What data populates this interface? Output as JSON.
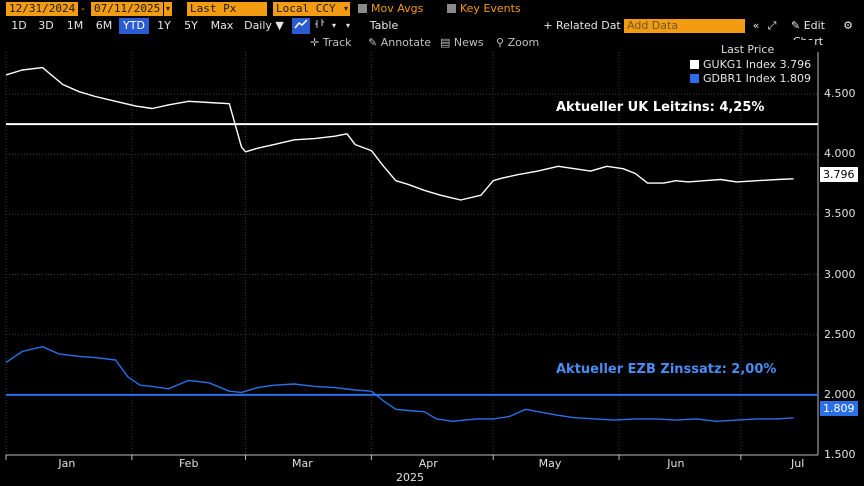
{
  "toolbar": {
    "start_date": "12/31/2024",
    "end_date": "07/11/2025",
    "last_px": "Last Px",
    "currency": "Local CCY",
    "mov_avgs": "Mov Avgs",
    "key_events": "Key Events",
    "accent": "#f39c12"
  },
  "periods": [
    {
      "label": "1D",
      "active": false
    },
    {
      "label": "3D",
      "active": false
    },
    {
      "label": "1M",
      "active": false
    },
    {
      "label": "6M",
      "active": false
    },
    {
      "label": "YTD",
      "active": true
    },
    {
      "label": "1Y",
      "active": false
    },
    {
      "label": "5Y",
      "active": false
    },
    {
      "label": "Max",
      "active": false
    }
  ],
  "frequency": "Daily ▼",
  "table_label": "Table",
  "related_data": "+ Related Dat",
  "add_data_placeholder": "Add Data",
  "edit_chart": "✎ Edit Chart",
  "controls": {
    "track": "Track",
    "annotate": "Annotate",
    "news": "News",
    "zoom": "Zoom"
  },
  "legend": {
    "title": "Last Price",
    "series": [
      {
        "label": "GUKG1 Index 3.796",
        "color": "#ffffff"
      },
      {
        "label": "GDBR1 Index 1.809",
        "color": "#2a6fe8"
      }
    ]
  },
  "annotations": {
    "uk": "Aktueller UK Leitzins: 4,25%",
    "ecb": "Aktueller EZB Zinssatz: 2,00%"
  },
  "last_tags": {
    "uk": "3.796",
    "de": "1.809"
  },
  "chart_data": {
    "type": "line",
    "ylim": [
      1.5,
      4.85
    ],
    "yticks": [
      "4.500",
      "4.000",
      "3.500",
      "3.000",
      "2.500",
      "2.000",
      "1.500"
    ],
    "ytick_values": [
      4.5,
      4.0,
      3.5,
      3.0,
      2.5,
      2.0,
      1.5
    ],
    "xticks": [
      "Jan",
      "Feb",
      "Mar",
      "Apr",
      "May",
      "Jun",
      "Jul"
    ],
    "xtick_days": [
      15,
      45,
      73,
      104,
      134,
      165,
      195
    ],
    "xlabel": "2025",
    "xlim_days": [
      0,
      200
    ],
    "hlines": [
      {
        "value": 4.25,
        "color": "#ffffff"
      },
      {
        "value": 2.0,
        "color": "#2a6fe8"
      }
    ],
    "series": [
      {
        "name": "GUKG1 Index",
        "color": "#ffffff",
        "x": [
          0,
          4,
          9,
          14,
          18,
          22,
          27,
          32,
          36,
          40,
          45,
          50,
          55,
          58,
          59,
          62,
          66,
          71,
          76,
          81,
          84,
          86,
          90,
          93,
          96,
          99,
          103,
          107,
          112,
          117,
          120,
          122,
          126,
          131,
          136,
          140,
          144,
          148,
          152,
          155,
          158,
          162,
          165,
          168,
          172,
          176,
          180,
          185,
          190,
          194
        ],
        "values": [
          4.66,
          4.7,
          4.72,
          4.58,
          4.52,
          4.48,
          4.44,
          4.4,
          4.38,
          4.41,
          4.44,
          4.43,
          4.42,
          4.06,
          4.02,
          4.05,
          4.08,
          4.12,
          4.13,
          4.15,
          4.17,
          4.08,
          4.03,
          3.9,
          3.78,
          3.75,
          3.7,
          3.66,
          3.62,
          3.66,
          3.78,
          3.8,
          3.83,
          3.86,
          3.9,
          3.88,
          3.86,
          3.9,
          3.88,
          3.84,
          3.76,
          3.76,
          3.78,
          3.77,
          3.78,
          3.79,
          3.77,
          3.78,
          3.79,
          3.796
        ]
      },
      {
        "name": "GDBR1 Index",
        "color": "#2a6fe8",
        "x": [
          0,
          4,
          9,
          13,
          18,
          22,
          27,
          30,
          33,
          36,
          40,
          45,
          50,
          55,
          58,
          62,
          66,
          71,
          76,
          81,
          86,
          90,
          93,
          96,
          99,
          103,
          106,
          110,
          113,
          116,
          120,
          124,
          128,
          131,
          136,
          140,
          145,
          150,
          155,
          160,
          165,
          170,
          175,
          180,
          185,
          190,
          194
        ],
        "values": [
          2.27,
          2.36,
          2.4,
          2.34,
          2.32,
          2.31,
          2.29,
          2.15,
          2.08,
          2.07,
          2.05,
          2.12,
          2.1,
          2.03,
          2.02,
          2.06,
          2.08,
          2.09,
          2.07,
          2.06,
          2.04,
          2.03,
          1.95,
          1.88,
          1.87,
          1.86,
          1.8,
          1.78,
          1.79,
          1.8,
          1.8,
          1.82,
          1.88,
          1.86,
          1.83,
          1.81,
          1.8,
          1.79,
          1.8,
          1.8,
          1.79,
          1.8,
          1.78,
          1.79,
          1.8,
          1.8,
          1.809
        ]
      }
    ]
  }
}
